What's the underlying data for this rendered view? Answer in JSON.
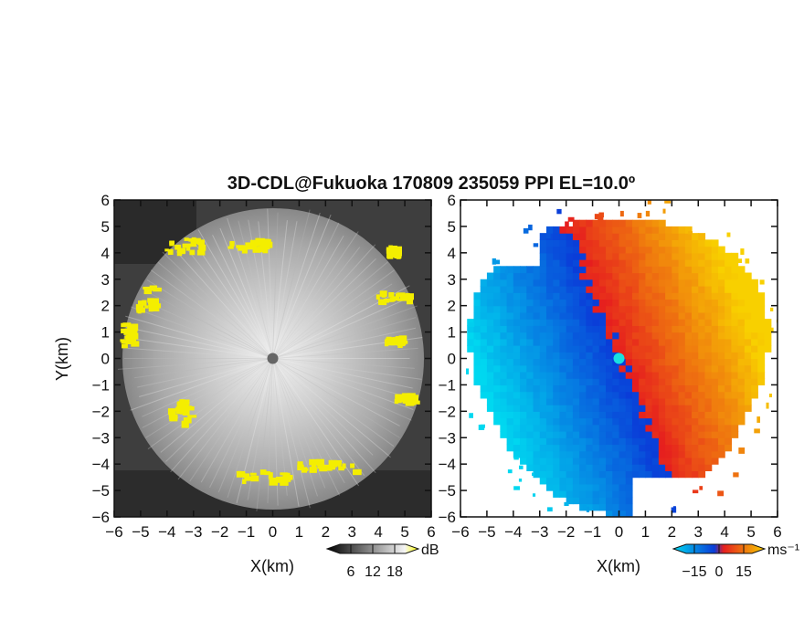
{
  "chart_data": [
    {
      "type": "heatmap",
      "panel": "left",
      "quantity": "reflectivity",
      "title": "3D-CDL@Fukuoka 170809 235059 PPI EL=10.0º",
      "xlabel": "X(km)",
      "ylabel": "Y(km)",
      "xlim": [
        -6,
        6
      ],
      "ylim": [
        -6,
        6
      ],
      "x_ticks": [
        "−6",
        "−5",
        "−4",
        "−3",
        "−2",
        "−1",
        "0",
        "1",
        "2",
        "3",
        "4",
        "5",
        "6"
      ],
      "y_ticks": [
        "6",
        "5",
        "4",
        "3",
        "2",
        "1",
        "0",
        "−1",
        "−2",
        "−3",
        "−4",
        "−5",
        "−6"
      ],
      "radar_center": [
        0,
        0
      ],
      "colorbar": {
        "unit": "dB",
        "ticks": [
          "6",
          "12",
          "18"
        ],
        "tick_values": [
          6,
          12,
          18
        ],
        "colors": [
          "#000000",
          "#ffffff",
          "#ffff00"
        ]
      }
    },
    {
      "type": "heatmap",
      "panel": "right",
      "quantity": "doppler velocity",
      "xlabel": "X(km)",
      "xlim": [
        -6,
        6
      ],
      "ylim": [
        -6,
        6
      ],
      "x_ticks": [
        "−6",
        "−5",
        "−4",
        "−3",
        "−2",
        "−1",
        "0",
        "1",
        "2",
        "3",
        "4",
        "5",
        "6"
      ],
      "y_ticks": [
        "6",
        "5",
        "4",
        "3",
        "2",
        "1",
        "0",
        "−1",
        "−2",
        "−3",
        "−4",
        "−5",
        "−6"
      ],
      "radar_center": [
        0,
        0
      ],
      "colorbar": {
        "unit": "ms⁻¹",
        "ticks": [
          "−15",
          "0",
          "15"
        ],
        "tick_values": [
          -15,
          0,
          15
        ],
        "colors": [
          "#00d8f0",
          "#0a3cd8",
          "#e61e1e",
          "#f8d000"
        ]
      }
    }
  ]
}
